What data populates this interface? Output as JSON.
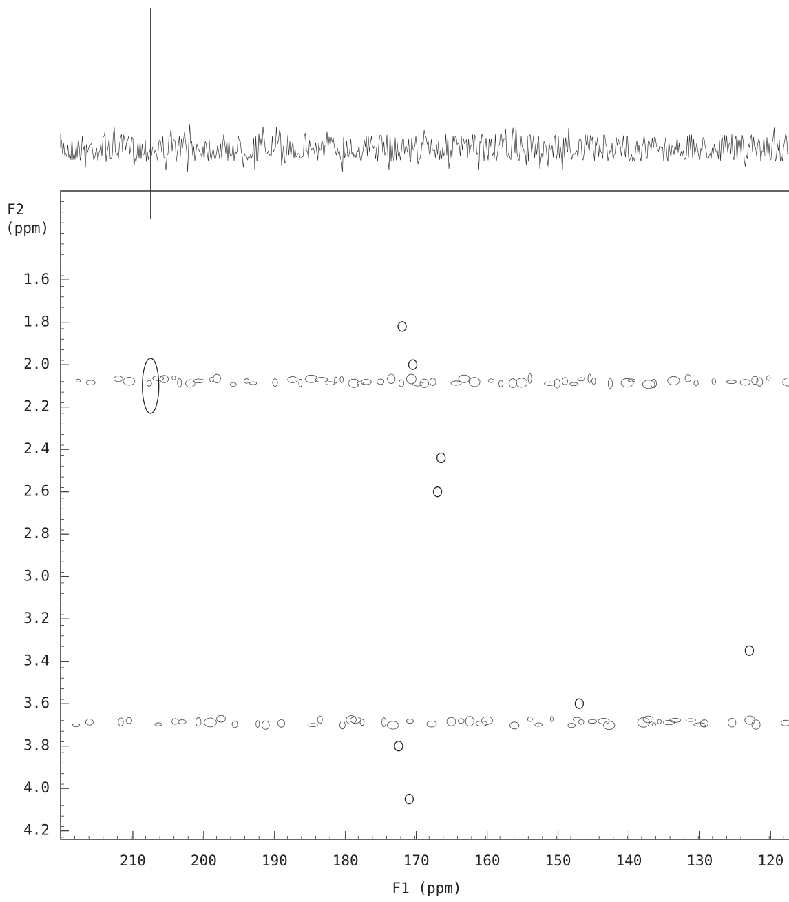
{
  "chart_data": {
    "type": "scatter",
    "xlabel": "F1 (ppm)",
    "ylabel_lines": [
      "F2",
      "(ppm)"
    ],
    "x": [
      207.5,
      170.5,
      172,
      166.5,
      167,
      171,
      123,
      172.5,
      147
    ],
    "values": [
      2.1,
      2.0,
      1.82,
      2.44,
      2.6,
      4.05,
      3.35,
      3.8,
      3.6
    ],
    "color": "#222222",
    "projection_peaks": [
      207.5
    ],
    "xlim": [
      220.2,
      117.5
    ],
    "ylim": [
      1.18,
      4.24
    ],
    "xticks": [
      210,
      200,
      190,
      180,
      170,
      160,
      150,
      140,
      130,
      120
    ],
    "yticks": [
      1.6,
      1.8,
      {
        "value": 2,
        "label": "2.0"
      },
      2.2,
      2.4,
      2.6,
      2.8,
      {
        "value": 3,
        "label": "3.0"
      },
      3.2,
      3.4,
      3.6,
      3.8,
      {
        "value": 4,
        "label": "4.0"
      },
      4.2
    ]
  }
}
